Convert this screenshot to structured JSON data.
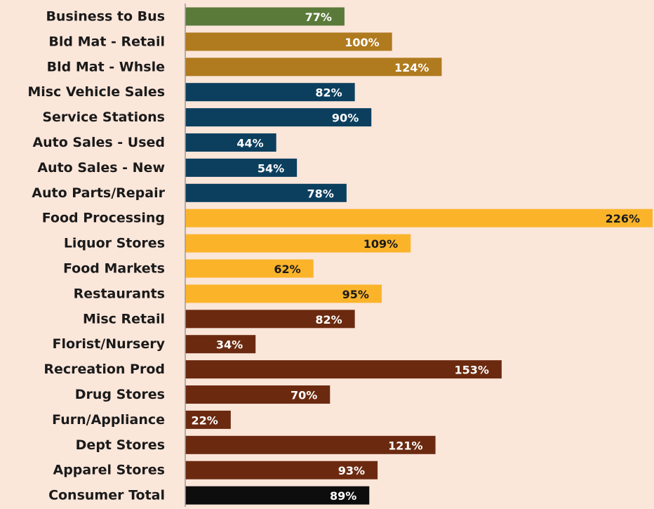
{
  "chart_data": {
    "type": "bar",
    "orientation": "horizontal",
    "title": "",
    "xlabel": "",
    "ylabel": "",
    "xlim": [
      0,
      226
    ],
    "grid": false,
    "categories": [
      "Business to Bus",
      "Bld Mat - Retail",
      "Bld Mat - Whsle",
      "Misc Vehicle Sales",
      "Service Stations",
      "Auto Sales - Used",
      "Auto Sales - New",
      "Auto Parts/Repair",
      "Food Processing",
      "Liquor Stores",
      "Food Markets",
      "Restaurants",
      "Misc Retail",
      "Florist/Nursery",
      "Recreation Prod",
      "Drug Stores",
      "Furn/Appliance",
      "Dept Stores",
      "Apparel Stores",
      "Consumer Total"
    ],
    "values": [
      77,
      100,
      124,
      82,
      90,
      44,
      54,
      78,
      226,
      109,
      62,
      95,
      82,
      34,
      153,
      70,
      22,
      121,
      93,
      89
    ],
    "value_labels": [
      "77%",
      "100%",
      "124%",
      "82%",
      "90%",
      "44%",
      "54%",
      "78%",
      "226%",
      "109%",
      "62%",
      "95%",
      "82%",
      "34%",
      "153%",
      "70%",
      "22%",
      "121%",
      "93%",
      "89%"
    ],
    "bar_colors": [
      "#5a7a3a",
      "#b07a1e",
      "#b07a1e",
      "#0c3f5e",
      "#0c3f5e",
      "#0c3f5e",
      "#0c3f5e",
      "#0c3f5e",
      "#fbb42a",
      "#fbb42a",
      "#fbb42a",
      "#fbb42a",
      "#6b2a10",
      "#6b2a10",
      "#6b2a10",
      "#6b2a10",
      "#6b2a10",
      "#6b2a10",
      "#6b2a10",
      "#0d0d0d"
    ],
    "label_colors": [
      "#ffffff",
      "#ffffff",
      "#ffffff",
      "#ffffff",
      "#ffffff",
      "#ffffff",
      "#ffffff",
      "#ffffff",
      "#1a1a1a",
      "#1a1a1a",
      "#1a1a1a",
      "#1a1a1a",
      "#ffffff",
      "#ffffff",
      "#ffffff",
      "#ffffff",
      "#ffffff",
      "#ffffff",
      "#ffffff",
      "#ffffff"
    ]
  },
  "colors": {
    "background": "#fbe6da",
    "axis": "#9a9a9a"
  }
}
